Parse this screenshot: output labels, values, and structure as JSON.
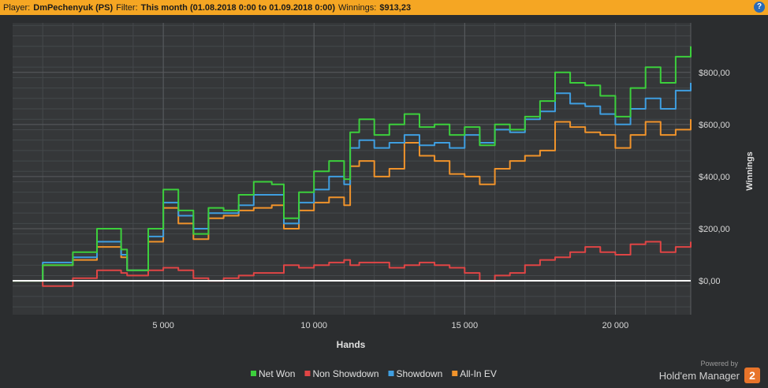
{
  "header": {
    "player_label": "Player:",
    "player_value": "DmPechenyuk (PS)",
    "filter_label": "Filter:",
    "filter_value": "This month (01.08.2018 0:00 to 01.09.2018 0:00)",
    "winnings_label": "Winnings:",
    "winnings_value": "$913,23",
    "help_glyph": "?"
  },
  "brand": {
    "powered_by": "Powered by",
    "name": "Hold'em Manager",
    "badge": "2"
  },
  "chart_data": {
    "type": "line",
    "xlabel": "Hands",
    "ylabel": "Winnings",
    "x_ticks": [
      5000,
      10000,
      15000,
      20000
    ],
    "x_tick_labels": [
      "5 000",
      "10 000",
      "15 000",
      "20 000"
    ],
    "y_ticks": [
      0,
      200,
      400,
      600,
      800
    ],
    "y_tick_labels": [
      "$0,00",
      "$200,00",
      "$400,00",
      "$600,00",
      "$800,00"
    ],
    "xlim": [
      0,
      22500
    ],
    "ylim": [
      -130,
      990
    ],
    "grid": true,
    "legend_position": "bottom-center",
    "x": [
      0,
      1000,
      2000,
      2800,
      3600,
      3800,
      4500,
      5000,
      5500,
      6000,
      6500,
      7000,
      7500,
      8000,
      8600,
      9000,
      9500,
      10000,
      10500,
      11000,
      11200,
      11500,
      12000,
      12500,
      13000,
      13500,
      14000,
      14500,
      15000,
      15500,
      16000,
      16500,
      17000,
      17500,
      18000,
      18500,
      19000,
      19500,
      20000,
      20500,
      21000,
      21500,
      22000,
      22500
    ],
    "series": [
      {
        "name": "Net Won",
        "color": "#3ccf3c",
        "values": [
          0,
          60,
          110,
          200,
          120,
          40,
          200,
          350,
          270,
          180,
          280,
          270,
          330,
          380,
          370,
          240,
          340,
          420,
          460,
          390,
          570,
          620,
          560,
          600,
          640,
          590,
          600,
          560,
          590,
          520,
          600,
          580,
          630,
          690,
          800,
          760,
          750,
          710,
          630,
          740,
          820,
          760,
          860,
          900
        ]
      },
      {
        "name": "Non Showdown",
        "color": "#e04545",
        "values": [
          0,
          -20,
          10,
          40,
          30,
          20,
          40,
          50,
          40,
          10,
          0,
          10,
          20,
          30,
          30,
          60,
          50,
          60,
          70,
          80,
          60,
          70,
          70,
          50,
          60,
          70,
          60,
          50,
          30,
          0,
          20,
          30,
          60,
          80,
          90,
          110,
          130,
          110,
          100,
          140,
          150,
          110,
          130,
          150
        ]
      },
      {
        "name": "Showdown",
        "color": "#3f9ee0",
        "values": [
          0,
          70,
          90,
          150,
          100,
          40,
          170,
          300,
          250,
          200,
          260,
          260,
          290,
          330,
          330,
          220,
          300,
          350,
          400,
          370,
          510,
          540,
          510,
          530,
          560,
          520,
          530,
          510,
          560,
          530,
          580,
          570,
          620,
          650,
          720,
          680,
          670,
          640,
          600,
          660,
          700,
          660,
          730,
          760
        ]
      },
      {
        "name": "All-In EV",
        "color": "#f0932b",
        "values": [
          0,
          60,
          80,
          130,
          90,
          40,
          150,
          280,
          220,
          160,
          240,
          250,
          270,
          280,
          290,
          200,
          270,
          300,
          320,
          290,
          440,
          460,
          400,
          430,
          530,
          480,
          460,
          410,
          400,
          370,
          430,
          460,
          480,
          500,
          610,
          590,
          570,
          560,
          510,
          560,
          610,
          560,
          580,
          620
        ]
      }
    ]
  }
}
